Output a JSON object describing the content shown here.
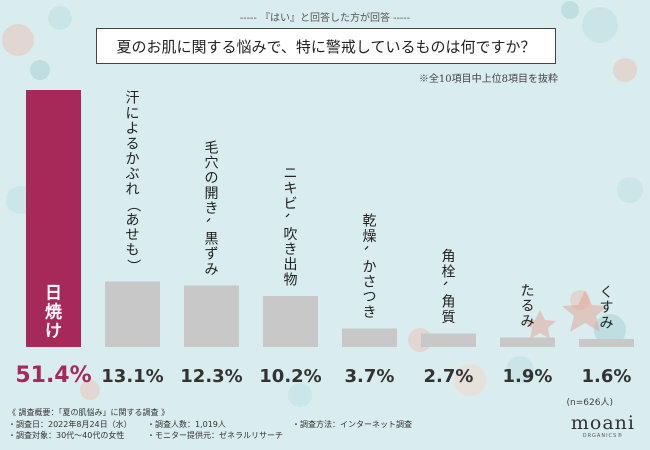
{
  "header": {
    "top_note": "----- 『はい』と回答した方が回答 -----",
    "question": "夏のお肌に関する悩みで、特に警戒しているものは何ですか？",
    "sub_note": "※全10項目中上位8項目を抜粋"
  },
  "chart_data": {
    "type": "bar",
    "title": "夏のお肌に関する悩みで、特に警戒しているものは何ですか？",
    "categories": [
      "日焼け",
      "汗によるかぶれ（あせも）",
      "毛穴の開き、黒ずみ",
      "ニキビ、吹き出物",
      "乾燥、かさつき",
      "角栓、角質",
      "たるみ",
      "くすみ"
    ],
    "values": [
      51.4,
      13.1,
      12.3,
      10.2,
      3.7,
      2.7,
      1.9,
      1.6
    ],
    "value_labels": [
      "51.4%",
      "13.1%",
      "12.3%",
      "10.2%",
      "3.7%",
      "2.7%",
      "1.9%",
      "1.6%"
    ],
    "unit": "%",
    "highlight_index": 0,
    "ylim": [
      0,
      51.4
    ],
    "colors": {
      "highlight": "#a52a5a",
      "bar": "#c8c8c8",
      "highlight_text": "#a52a5a",
      "text": "#333333"
    }
  },
  "footer": {
    "n_label": "(n=626人)",
    "survey_title": "《 調査概要：「夏の肌悩み」に関する調査 》",
    "survey_date": "・調査日：2022年8月24日（水）",
    "survey_people": "・調査人数：1,019人",
    "survey_method": "・調査方法：インターネット調査",
    "survey_target": "・調査対象：30代〜40代の女性",
    "survey_provider": "・モニター提供元：ゼネラルリサーチ",
    "logo_main": "moani",
    "logo_sub": "ORGANICS®"
  }
}
